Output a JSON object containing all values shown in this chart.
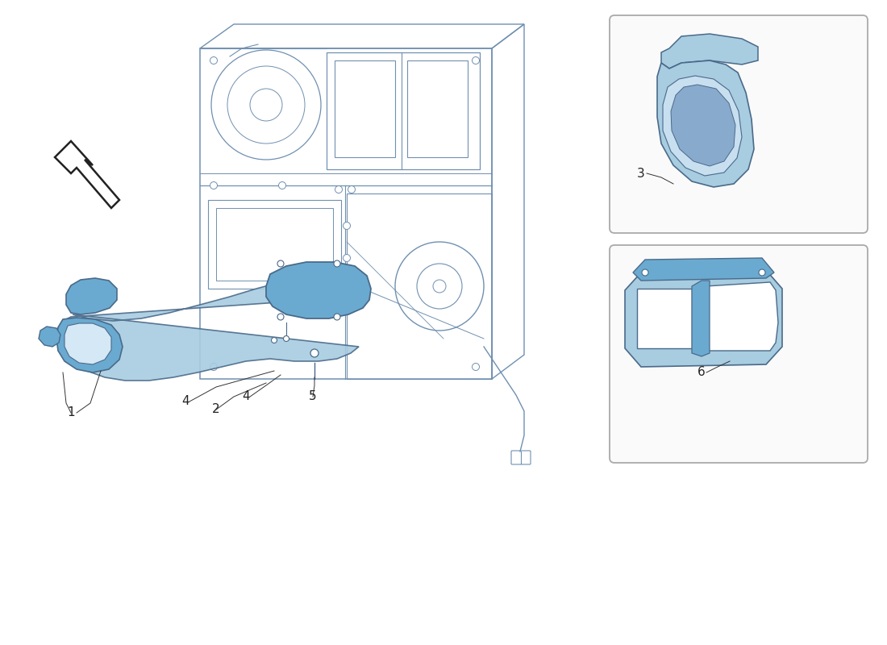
{
  "background_color": "#ffffff",
  "light_blue": "#a8cce0",
  "mid_blue": "#6aaad0",
  "dark_line": "#4a6a8a",
  "sketch_line": "#7090b0",
  "label_color": "#222222",
  "box_border": "#aaaaaa",
  "box_bg": "#fafafa",
  "arrow_color": "#222222",
  "label_fontsize": 11,
  "figsize": [
    11.0,
    8.0
  ],
  "dpi": 100
}
